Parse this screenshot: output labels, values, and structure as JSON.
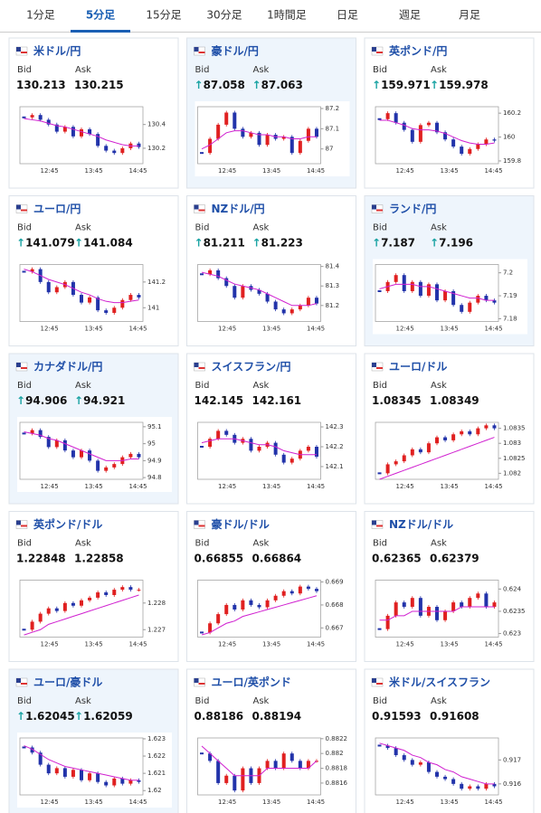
{
  "tabs": [
    "1分足",
    "5分足",
    "15分足",
    "30分足",
    "1時間足",
    "日足",
    "週足",
    "月足"
  ],
  "active_tab": 1,
  "cards": [
    {
      "name": "米ドル/円",
      "highlighted": false,
      "bid_label": "Bid",
      "ask_label": "Ask",
      "bid": "130.213",
      "ask": "130.215",
      "chart": {
        "ylim": [
          130.07,
          130.55
        ],
        "yticks": [
          130.2,
          130.4
        ],
        "xticks": [
          "12:45",
          "13:45",
          "14:45"
        ],
        "values": [
          130.46,
          130.48,
          130.44,
          130.4,
          130.34,
          130.38,
          130.3,
          130.36,
          130.32,
          130.22,
          130.18,
          130.16,
          130.2,
          130.24,
          130.21
        ],
        "ma": [
          130.45,
          130.44,
          130.43,
          130.41,
          130.39,
          130.38,
          130.36,
          130.34,
          130.32,
          130.3,
          130.27,
          130.25,
          130.23,
          130.22,
          130.22
        ]
      }
    },
    {
      "name": "豪ドル/円",
      "highlighted": true,
      "bid_label": "Bid",
      "ask_label": "Ask",
      "bid_arrow": "↑",
      "bid": "87.058",
      "ask_arrow": "↑",
      "ask": "87.063",
      "chart": {
        "ylim": [
          86.927,
          87.209
        ],
        "yticks": [
          87,
          87.1,
          87.2
        ],
        "xticks": [
          "12:45",
          "13:45",
          "14:45"
        ],
        "values": [
          86.98,
          87.05,
          87.12,
          87.18,
          87.1,
          87.06,
          87.08,
          87.02,
          87.07,
          87.05,
          87.06,
          86.98,
          87.04,
          87.1,
          87.06
        ],
        "ma": [
          87,
          87.02,
          87.05,
          87.08,
          87.09,
          87.09,
          87.08,
          87.07,
          87.07,
          87.06,
          87.06,
          87.05,
          87.05,
          87.06,
          87.06
        ]
      }
    },
    {
      "name": "英ポンド/円",
      "highlighted": false,
      "bid_label": "Bid",
      "ask_label": "Ask",
      "bid_arrow": "↑",
      "bid": "159.971",
      "ask_arrow": "↑",
      "ask": "159.978",
      "chart": {
        "ylim": [
          159.777,
          160.254
        ],
        "yticks": [
          159.8,
          160,
          160.2
        ],
        "xticks": [
          "12:45",
          "13:45",
          "14:45"
        ],
        "values": [
          160.15,
          160.2,
          160.12,
          160.06,
          159.96,
          160.1,
          160.12,
          160.04,
          159.98,
          159.92,
          159.86,
          159.9,
          159.94,
          159.98,
          159.97
        ],
        "ma": [
          160.14,
          160.14,
          160.12,
          160.1,
          160.07,
          160.06,
          160.06,
          160.05,
          160.03,
          160,
          159.97,
          159.95,
          159.94,
          159.94,
          159.95
        ]
      }
    },
    {
      "name": "ユーロ/円",
      "highlighted": false,
      "bid_label": "Bid",
      "ask_label": "Ask",
      "bid_arrow": "↑",
      "bid": "141.079",
      "ask_arrow": "↑",
      "ask": "141.084",
      "chart": {
        "ylim": [
          140.893,
          141.336
        ],
        "yticks": [
          141,
          141.2
        ],
        "xticks": [
          "12:45",
          "13:45",
          "14:45"
        ],
        "values": [
          141.28,
          141.3,
          141.2,
          141.12,
          141.16,
          141.2,
          141.1,
          141.04,
          141.08,
          140.98,
          140.96,
          141,
          141.06,
          141.1,
          141.08
        ],
        "ma": [
          141.3,
          141.28,
          141.25,
          141.22,
          141.2,
          141.18,
          141.15,
          141.12,
          141.1,
          141.07,
          141.05,
          141.04,
          141.04,
          141.05,
          141.06
        ]
      }
    },
    {
      "name": "NZドル/円",
      "highlighted": false,
      "bid_label": "Bid",
      "ask_label": "Ask",
      "bid_arrow": "↑",
      "bid": "81.211",
      "ask_arrow": "↑",
      "ask": "81.223",
      "chart": {
        "ylim": [
          81.118,
          81.41
        ],
        "yticks": [
          81.2,
          81.3,
          81.4
        ],
        "xticks": [
          "12:45",
          "13:45",
          "14:45"
        ],
        "values": [
          81.36,
          81.38,
          81.34,
          81.3,
          81.24,
          81.3,
          81.28,
          81.26,
          81.22,
          81.18,
          81.16,
          81.18,
          81.2,
          81.24,
          81.21
        ],
        "ma": [
          81.37,
          81.36,
          81.35,
          81.33,
          81.31,
          81.3,
          81.29,
          81.28,
          81.26,
          81.24,
          81.22,
          81.2,
          81.2,
          81.2,
          81.21
        ]
      }
    },
    {
      "name": "ランド/円",
      "highlighted": true,
      "bid_label": "Bid",
      "ask_label": "Ask",
      "bid_arrow": "↑",
      "bid": "7.187",
      "ask_arrow": "↑",
      "ask": "7.196",
      "chart": {
        "ylim": [
          7.1788,
          7.2036
        ],
        "yticks": [
          7.18,
          7.19,
          7.2
        ],
        "xticks": [
          "12:45",
          "13:45",
          "14:45"
        ],
        "values": [
          7.192,
          7.196,
          7.199,
          7.192,
          7.196,
          7.19,
          7.195,
          7.188,
          7.192,
          7.186,
          7.183,
          7.187,
          7.19,
          7.188,
          7.187
        ],
        "ma": [
          7.193,
          7.194,
          7.195,
          7.195,
          7.195,
          7.194,
          7.194,
          7.193,
          7.192,
          7.191,
          7.19,
          7.189,
          7.189,
          7.188,
          7.188
        ]
      }
    },
    {
      "name": "カナダドル/円",
      "highlighted": true,
      "bid_label": "Bid",
      "ask_label": "Ask",
      "bid_arrow": "↑",
      "bid": "94.906",
      "ask_arrow": "↑",
      "ask": "94.921",
      "chart": {
        "ylim": [
          94.79,
          95.126
        ],
        "yticks": [
          94.8,
          94.9,
          95,
          95.1
        ],
        "xticks": [
          "12:45",
          "13:45",
          "14:45"
        ],
        "values": [
          95.06,
          95.08,
          95.04,
          94.98,
          95.02,
          94.96,
          94.92,
          94.96,
          94.9,
          94.84,
          94.86,
          94.88,
          94.92,
          94.94,
          94.92
        ],
        "ma": [
          95.07,
          95.06,
          95.05,
          95.03,
          95.02,
          95,
          94.98,
          94.96,
          94.94,
          94.92,
          94.9,
          94.9,
          94.9,
          94.91,
          94.91
        ]
      }
    },
    {
      "name": "スイスフラン/円",
      "highlighted": false,
      "bid_label": "Bid",
      "ask_label": "Ask",
      "bid": "142.145",
      "ask": "142.161",
      "chart": {
        "ylim": [
          142.036,
          142.323
        ],
        "yticks": [
          142.1,
          142.2,
          142.3
        ],
        "xticks": [
          "12:45",
          "13:45",
          "14:45"
        ],
        "values": [
          142.2,
          142.24,
          142.28,
          142.26,
          142.22,
          142.24,
          142.18,
          142.2,
          142.22,
          142.16,
          142.12,
          142.14,
          142.18,
          142.2,
          142.15
        ],
        "ma": [
          142.22,
          142.23,
          142.24,
          142.24,
          142.24,
          142.23,
          142.22,
          142.21,
          142.21,
          142.2,
          142.18,
          142.17,
          142.16,
          142.16,
          142.16
        ]
      }
    },
    {
      "name": "ユーロ/ドル",
      "highlighted": false,
      "bid_label": "Bid",
      "ask_label": "Ask",
      "bid": "1.08345",
      "ask": "1.08349",
      "chart": {
        "ylim": [
          1.0818,
          1.0837
        ],
        "yticks": [
          1.082,
          1.0825,
          1.083,
          1.0835
        ],
        "xticks": [
          "12:45",
          "13:45",
          "14:45"
        ],
        "values": [
          1.082,
          1.0823,
          1.0824,
          1.0826,
          1.0828,
          1.0827,
          1.083,
          1.0832,
          1.0831,
          1.0833,
          1.0834,
          1.0833,
          1.0835,
          1.0836,
          1.0835
        ],
        "ma": [
          1.0818,
          1.0819,
          1.082,
          1.0821,
          1.0822,
          1.0823,
          1.0824,
          1.0825,
          1.0826,
          1.0827,
          1.0828,
          1.0829,
          1.083,
          1.0831,
          1.0832
        ]
      }
    },
    {
      "name": "英ポンド/ドル",
      "highlighted": false,
      "bid_label": "Bid",
      "ask_label": "Ask",
      "bid": "1.22848",
      "ask": "1.22858",
      "chart": {
        "ylim": [
          1.22672,
          1.22886
        ],
        "yticks": [
          1.227,
          1.228
        ],
        "xticks": [
          "12:45",
          "13:45",
          "14:45"
        ],
        "values": [
          1.227,
          1.2273,
          1.2276,
          1.2278,
          1.2277,
          1.228,
          1.2279,
          1.2281,
          1.2282,
          1.2284,
          1.2283,
          1.2285,
          1.2286,
          1.2285,
          1.2285
        ],
        "ma": [
          1.2268,
          1.2269,
          1.227,
          1.2272,
          1.2273,
          1.2274,
          1.2275,
          1.2276,
          1.2277,
          1.2278,
          1.2279,
          1.228,
          1.2281,
          1.2282,
          1.2283
        ]
      }
    },
    {
      "name": "豪ドル/ドル",
      "highlighted": false,
      "bid_label": "Bid",
      "ask_label": "Ask",
      "bid": "0.66855",
      "ask": "0.66864",
      "chart": {
        "ylim": [
          0.6666,
          0.66908
        ],
        "yticks": [
          0.667,
          0.668,
          0.669
        ],
        "xticks": [
          "12:45",
          "13:45",
          "14:45"
        ],
        "values": [
          0.6668,
          0.6672,
          0.6676,
          0.668,
          0.6678,
          0.6682,
          0.668,
          0.6679,
          0.6682,
          0.6684,
          0.6686,
          0.6685,
          0.6688,
          0.6687,
          0.6686
        ],
        "ma": [
          0.6667,
          0.6668,
          0.667,
          0.6672,
          0.6673,
          0.6675,
          0.6676,
          0.6677,
          0.6678,
          0.6679,
          0.668,
          0.6681,
          0.6682,
          0.6683,
          0.6684
        ]
      }
    },
    {
      "name": "NZドル/ドル",
      "highlighted": false,
      "bid_label": "Bid",
      "ask_label": "Ask",
      "bid": "0.62365",
      "ask": "0.62379",
      "chart": {
        "ylim": [
          0.62292,
          0.6242
        ],
        "yticks": [
          0.623,
          0.6235,
          0.624
        ],
        "xticks": [
          "12:45",
          "13:45",
          "14:45"
        ],
        "values": [
          0.6231,
          0.6234,
          0.6237,
          0.6236,
          0.6238,
          0.6234,
          0.6236,
          0.6233,
          0.6235,
          0.6237,
          0.6236,
          0.6238,
          0.6239,
          0.6236,
          0.6237
        ],
        "ma": [
          0.6233,
          0.6233,
          0.6234,
          0.6234,
          0.6235,
          0.6235,
          0.6235,
          0.6235,
          0.6235,
          0.6235,
          0.6236,
          0.6236,
          0.6236,
          0.6236,
          0.6236
        ]
      }
    },
    {
      "name": "ユーロ/豪ドル",
      "highlighted": true,
      "bid_label": "Bid",
      "ask_label": "Ask",
      "bid_arrow": "↑",
      "bid": "1.62045",
      "ask_arrow": "↑",
      "ask": "1.62059",
      "chart": {
        "ylim": [
          1.61975,
          1.62305
        ],
        "yticks": [
          1.62,
          1.621,
          1.622,
          1.623
        ],
        "xticks": [
          "12:45",
          "13:45",
          "14:45"
        ],
        "values": [
          1.6225,
          1.6222,
          1.6215,
          1.621,
          1.6213,
          1.6208,
          1.6212,
          1.6206,
          1.621,
          1.6205,
          1.6203,
          1.6207,
          1.6204,
          1.6206,
          1.6205
        ],
        "ma": [
          1.6226,
          1.6224,
          1.6221,
          1.6218,
          1.6216,
          1.6214,
          1.6213,
          1.6212,
          1.6211,
          1.621,
          1.6209,
          1.6208,
          1.6207,
          1.6206,
          1.6206
        ]
      }
    },
    {
      "name": "ユーロ/英ポンド",
      "highlighted": false,
      "bid_label": "Bid",
      "ask_label": "Ask",
      "bid": "0.88186",
      "ask": "0.88194",
      "chart": {
        "ylim": [
          0.88144,
          0.88221
        ],
        "yticks": [
          0.8816,
          0.8818,
          0.882,
          0.8822
        ],
        "xticks": [
          "12:45",
          "13:45",
          "14:45"
        ],
        "values": [
          0.882,
          0.8819,
          0.8816,
          0.8817,
          0.8815,
          0.8818,
          0.8816,
          0.8818,
          0.8819,
          0.8818,
          0.882,
          0.8819,
          0.8818,
          0.8819,
          0.8819
        ],
        "ma": [
          0.8821,
          0.882,
          0.8819,
          0.8818,
          0.8817,
          0.8817,
          0.8817,
          0.8817,
          0.8818,
          0.8818,
          0.8818,
          0.8818,
          0.8818,
          0.8818,
          0.8819
        ]
      }
    },
    {
      "name": "米ドル/スイスフラン",
      "highlighted": false,
      "bid_label": "Bid",
      "ask_label": "Ask",
      "bid": "0.91593",
      "ask": "0.91608",
      "chart": {
        "ylim": [
          0.91554,
          0.91792
        ],
        "yticks": [
          0.916,
          0.917
        ],
        "xticks": [
          "12:45",
          "13:45",
          "14:45"
        ],
        "values": [
          0.9176,
          0.9175,
          0.9172,
          0.917,
          0.9168,
          0.9169,
          0.9165,
          0.9163,
          0.9162,
          0.916,
          0.9158,
          0.9159,
          0.9158,
          0.916,
          0.9159
        ],
        "ma": [
          0.9177,
          0.9176,
          0.9175,
          0.9174,
          0.9172,
          0.9171,
          0.9169,
          0.9168,
          0.9166,
          0.9165,
          0.9163,
          0.9162,
          0.9161,
          0.916,
          0.916
        ]
      }
    }
  ]
}
